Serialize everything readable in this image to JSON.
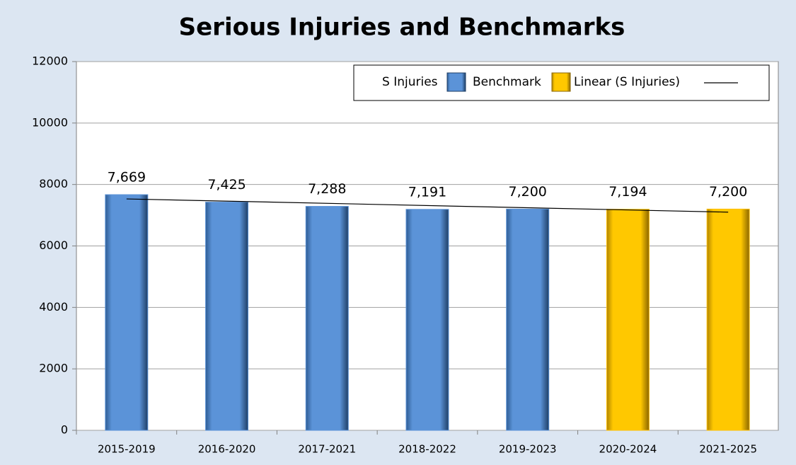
{
  "chart_data": {
    "type": "bar",
    "title": "Serious Injuries and Benchmarks",
    "categories": [
      "2015-2019",
      "2016-2020",
      "2017-2021",
      "2018-2022",
      "2019-2023",
      "2020-2024",
      "2021-2025"
    ],
    "series": [
      {
        "name": "S Injuries",
        "color": "#5b93d8",
        "values": [
          7669,
          7425,
          7288,
          7191,
          7200,
          null,
          null
        ],
        "value_labels": [
          "7,669",
          "7,425",
          "7,288",
          "7,191",
          "7,200",
          null,
          null
        ]
      },
      {
        "name": "Benchmark",
        "color": "#ffc000",
        "values": [
          null,
          null,
          null,
          null,
          null,
          7194,
          7200
        ],
        "value_labels": [
          null,
          null,
          null,
          null,
          null,
          "7,194",
          "7,200"
        ]
      }
    ],
    "trend": {
      "name": "Linear (S Injuries)",
      "color": "#000000",
      "start": 7530,
      "end": 7100
    },
    "ylim": [
      0,
      12000
    ],
    "yticks": [
      0,
      2000,
      4000,
      6000,
      8000,
      10000,
      12000
    ],
    "grid": true
  }
}
